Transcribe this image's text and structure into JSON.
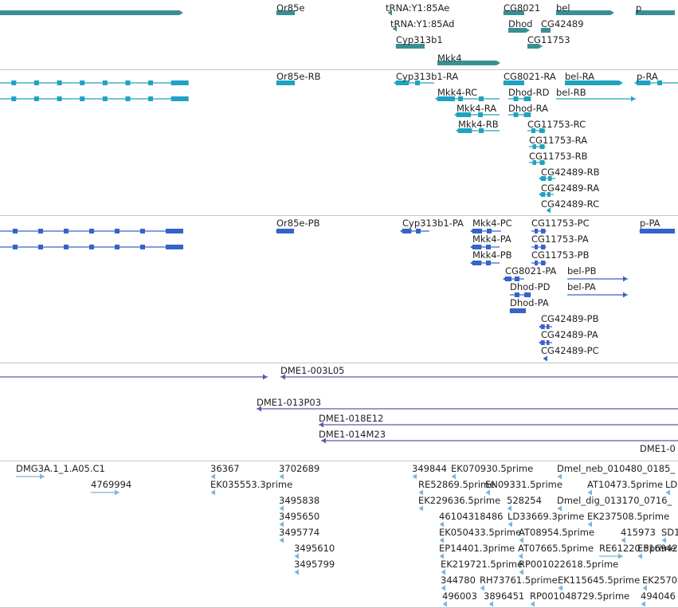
{
  "colors": {
    "gene": "#3a8f93",
    "transcript": "#1fa3c0",
    "protein": "#3563c9",
    "clone": "#6a4fb0",
    "est": "#7bb4dc",
    "divider": "#c8c8c8"
  },
  "tracks": [
    {
      "name": "gene-track",
      "color_key": "gene",
      "features": [
        {
          "label": ""
        },
        {
          "label": "Or85e"
        },
        {
          "label": "tRNA:Y1:85Ae"
        },
        {
          "label": "tRNA:Y1:85Ad"
        },
        {
          "label": "Cyp313b1"
        },
        {
          "label": "Mkk4"
        },
        {
          "label": "CG8021"
        },
        {
          "label": "Dhod"
        },
        {
          "label": "CG42489"
        },
        {
          "label": "CG11753"
        },
        {
          "label": "bel"
        },
        {
          "label": "p"
        }
      ]
    },
    {
      "name": "transcript-track",
      "color_key": "transcript",
      "features": [
        {
          "label": ""
        },
        {
          "label": ""
        },
        {
          "label": "Or85e-RB"
        },
        {
          "label": "Cyp313b1-RA"
        },
        {
          "label": "Mkk4-RC"
        },
        {
          "label": "Mkk4-RA"
        },
        {
          "label": "Mkk4-RB"
        },
        {
          "label": "CG8021-RA"
        },
        {
          "label": "Dhod-RD"
        },
        {
          "label": "Dhod-RA"
        },
        {
          "label": "bel-RA"
        },
        {
          "label": "bel-RB"
        },
        {
          "label": "p-RA"
        },
        {
          "label": "CG11753-RC"
        },
        {
          "label": "CG11753-RA"
        },
        {
          "label": "CG11753-RB"
        },
        {
          "label": "CG42489-RB"
        },
        {
          "label": "CG42489-RA"
        },
        {
          "label": "CG42489-RC"
        }
      ]
    },
    {
      "name": "protein-track",
      "color_key": "protein",
      "features": [
        {
          "label": ""
        },
        {
          "label": ""
        },
        {
          "label": "Or85e-PB"
        },
        {
          "label": "Cyp313b1-PA"
        },
        {
          "label": "Mkk4-PC"
        },
        {
          "label": "Mkk4-PA"
        },
        {
          "label": "Mkk4-PB"
        },
        {
          "label": "CG11753-PC"
        },
        {
          "label": "CG11753-PA"
        },
        {
          "label": "CG11753-PB"
        },
        {
          "label": "CG8021-PA"
        },
        {
          "label": "Dhod-PD"
        },
        {
          "label": "Dhod-PA"
        },
        {
          "label": "bel-PB"
        },
        {
          "label": "bel-PA"
        },
        {
          "label": "p-PA"
        },
        {
          "label": "CG42489-PB"
        },
        {
          "label": "CG42489-PA"
        },
        {
          "label": "CG42489-PC"
        }
      ]
    },
    {
      "name": "clone-track",
      "color_key": "clone",
      "features": [
        {
          "label": "DME1-003L05"
        },
        {
          "label": ""
        },
        {
          "label": "DME1-013P03"
        },
        {
          "label": "DME1-018E12"
        },
        {
          "label": "DME1-014M23"
        },
        {
          "label": "DME1-0"
        }
      ]
    },
    {
      "name": "est-track",
      "color_key": "est",
      "features": [
        {
          "label": "DMG3A.1_1.A05.C1"
        },
        {
          "label": "4769994"
        },
        {
          "label": "36367"
        },
        {
          "label": "EK035553.3prime"
        },
        {
          "label": "3702689"
        },
        {
          "label": "3495838"
        },
        {
          "label": "3495650"
        },
        {
          "label": "3495774"
        },
        {
          "label": "3495610"
        },
        {
          "label": "3495799"
        },
        {
          "label": "349844"
        },
        {
          "label": "EK070930.5prime"
        },
        {
          "label": "RE52869.5prime"
        },
        {
          "label": "EN09331.5prime"
        },
        {
          "label": "EK229636.5prime"
        },
        {
          "label": "528254"
        },
        {
          "label": "46104318486"
        },
        {
          "label": "LD33669.3prime"
        },
        {
          "label": "EK050433.5prime"
        },
        {
          "label": "AT08954.5prime"
        },
        {
          "label": "EP14401.3prime"
        },
        {
          "label": "AT07665.5prime"
        },
        {
          "label": "EK219721.5prime"
        },
        {
          "label": "RP001022618.5prime"
        },
        {
          "label": "344780"
        },
        {
          "label": "RH73761.5prime"
        },
        {
          "label": "EK115645.5prime"
        },
        {
          "label": "496003"
        },
        {
          "label": "3896451"
        },
        {
          "label": "RP001048729.5prime"
        },
        {
          "label": "Dmel_neb_010480_0185_"
        },
        {
          "label": "AT10473.5prime"
        },
        {
          "label": "LD"
        },
        {
          "label": "Dmel_dig_013170_0716_"
        },
        {
          "label": "EK237508.5prime"
        },
        {
          "label": "415973"
        },
        {
          "label": "SD1"
        },
        {
          "label": "RE61220.5prime"
        },
        {
          "label": "EP16942"
        },
        {
          "label": "EK2570"
        },
        {
          "label": "494046"
        }
      ]
    }
  ]
}
